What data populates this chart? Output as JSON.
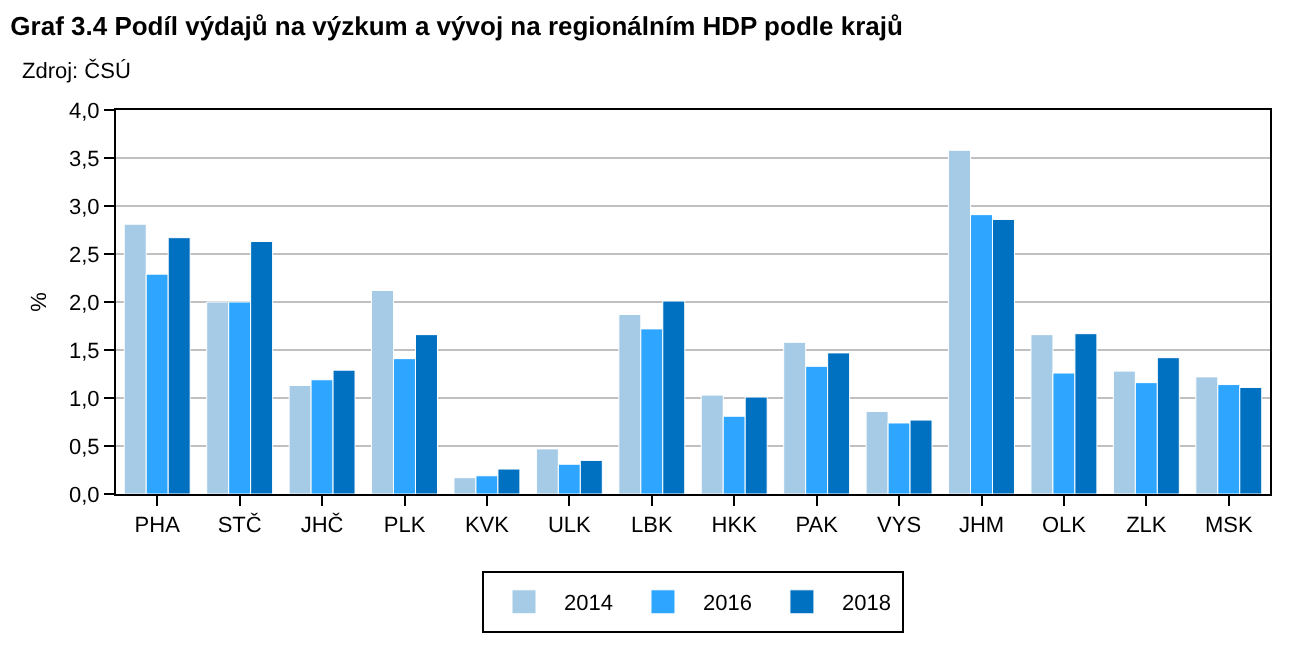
{
  "chart_data": {
    "type": "bar",
    "title": "Graf 3.4 Podíl výdajů na výzkum a vývoj na regionálním HDP podle krajů",
    "annotations": [
      "Zdroj: ČSÚ"
    ],
    "ylabel": "%",
    "categories": [
      "PHA",
      "STČ",
      "JHČ",
      "PLK",
      "KVK",
      "ULK",
      "LBK",
      "HKK",
      "PAK",
      "VYS",
      "JHM",
      "OLK",
      "ZLK",
      "MSK"
    ],
    "series": [
      {
        "name": "2014",
        "color": "#a6cbe6",
        "values": [
          2.81,
          2.0,
          1.13,
          2.12,
          0.17,
          0.47,
          1.87,
          1.03,
          1.58,
          0.86,
          3.58,
          1.66,
          1.28,
          1.22
        ]
      },
      {
        "name": "2016",
        "color": "#2ea6ff",
        "values": [
          2.29,
          2.0,
          1.19,
          1.41,
          0.19,
          0.31,
          1.72,
          0.81,
          1.33,
          0.74,
          2.91,
          1.26,
          1.16,
          1.14
        ]
      },
      {
        "name": "2018",
        "color": "#0070c0",
        "values": [
          2.67,
          2.63,
          1.29,
          1.66,
          0.26,
          0.35,
          2.01,
          1.01,
          1.47,
          0.77,
          2.86,
          1.67,
          1.42,
          1.11
        ]
      }
    ],
    "ylim": [
      0,
      4
    ],
    "yticks": [
      {
        "value": 0,
        "label": "0,0"
      },
      {
        "value": 0.5,
        "label": "0,5"
      },
      {
        "value": 1,
        "label": "1,0"
      },
      {
        "value": 1.5,
        "label": "1,5"
      },
      {
        "value": 2,
        "label": "2,0"
      },
      {
        "value": 2.5,
        "label": "2,5"
      },
      {
        "value": 3,
        "label": "3,0"
      },
      {
        "value": 3.5,
        "label": "3,5"
      },
      {
        "value": 4,
        "label": "4,0"
      }
    ],
    "grid": "y",
    "legend": "bottom"
  }
}
